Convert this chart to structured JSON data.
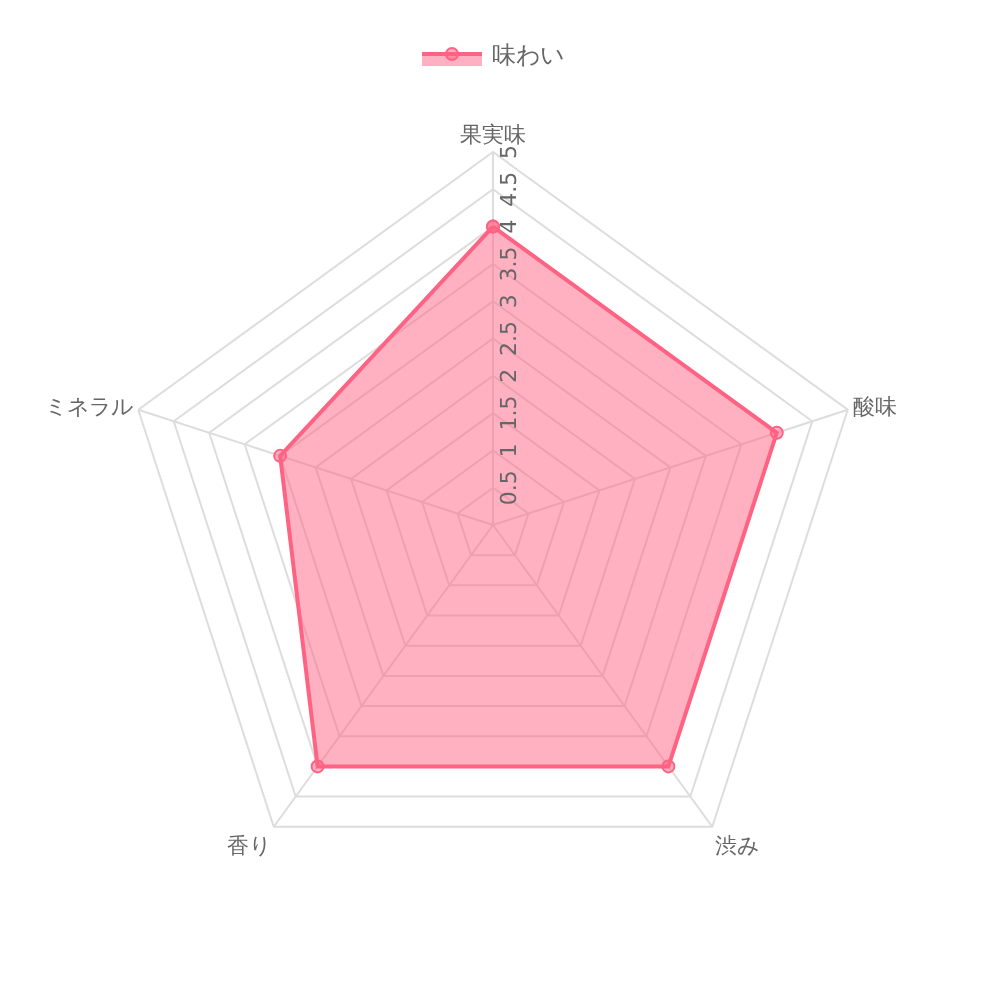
{
  "chart_data": {
    "type": "radar",
    "categories": [
      "果実味",
      "酸味",
      "渋み",
      "香り",
      "ミネラル"
    ],
    "series": [
      {
        "name": "味わい",
        "color": "#ff6384",
        "values": [
          4,
          4,
          4,
          4,
          3
        ]
      }
    ],
    "ylim": [
      0,
      5
    ],
    "yticks": [
      0.5,
      1,
      1.5,
      2,
      2.5,
      3,
      3.5,
      4,
      4.5,
      5
    ],
    "grid": true,
    "legend": "top",
    "marker": "circle"
  }
}
